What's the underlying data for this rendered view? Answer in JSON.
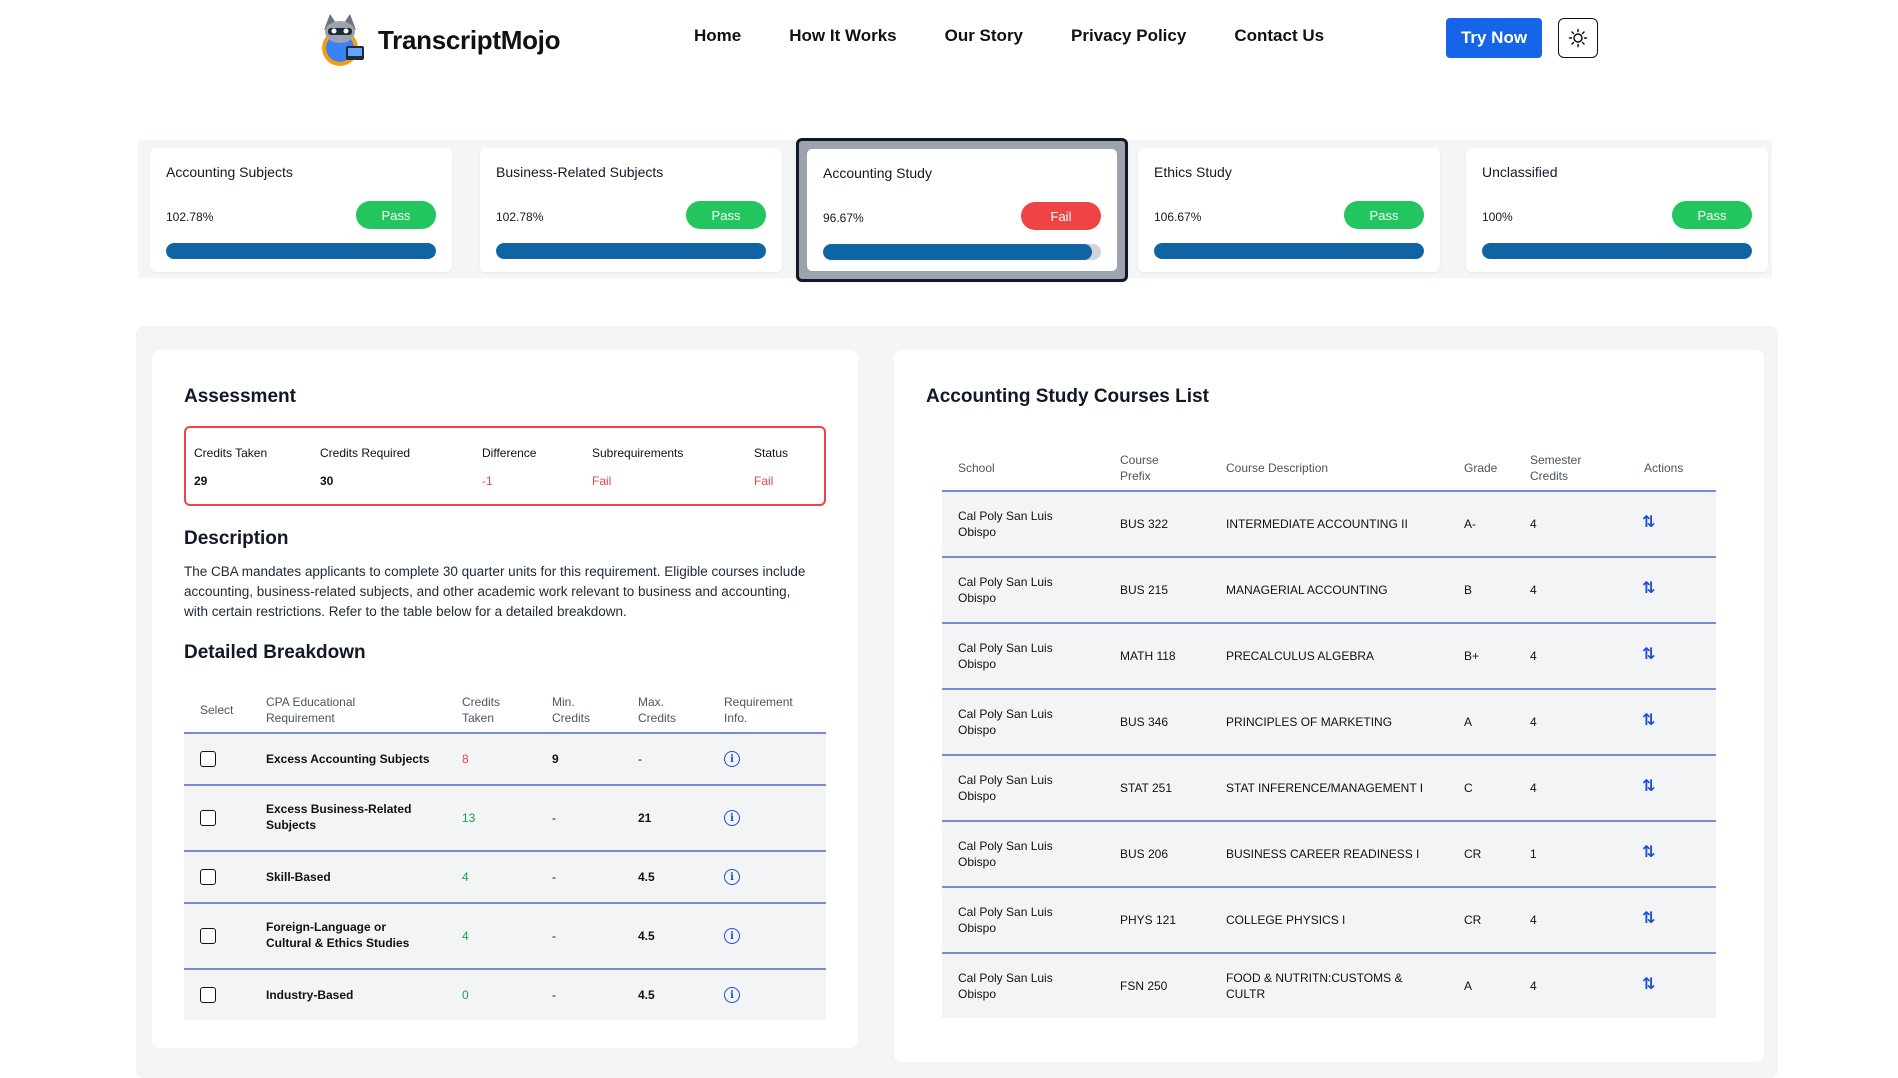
{
  "header": {
    "brand": "TranscriptMojo",
    "nav": [
      "Home",
      "How It Works",
      "Our Story",
      "Privacy Policy",
      "Contact Us"
    ],
    "try_now": "Try Now",
    "theme_icon": "sun-icon"
  },
  "categories": [
    {
      "title": "Accounting Subjects",
      "percent": "102.78%",
      "status": "Pass",
      "progress": 1.0
    },
    {
      "title": "Business-Related Subjects",
      "percent": "102.78%",
      "status": "Pass",
      "progress": 1.0
    },
    {
      "title": "Accounting Study",
      "percent": "96.67%",
      "status": "Fail",
      "progress": 0.9667
    },
    {
      "title": "Ethics Study",
      "percent": "106.67%",
      "status": "Pass",
      "progress": 1.0
    },
    {
      "title": "Unclassified",
      "percent": "100%",
      "status": "Pass",
      "progress": 1.0
    }
  ],
  "assessment": {
    "heading": "Assessment",
    "columns": [
      "Credits Taken",
      "Credits Required",
      "Difference",
      "Subrequirements",
      "Status"
    ],
    "values": [
      "29",
      "30",
      "-1",
      "Fail",
      "Fail"
    ]
  },
  "description": {
    "heading": "Description",
    "text": "The CBA mandates applicants to complete 30 quarter units for this requirement. Eligible courses include accounting, business-related subjects, and other academic work relevant to business and accounting, with certain restrictions. Refer to the table below for a detailed breakdown."
  },
  "breakdown": {
    "heading": "Detailed Breakdown",
    "headers": [
      "Select",
      "CPA Educational Requirement",
      "Credits Taken",
      "Min. Credits",
      "Max. Credits",
      "Requirement Info."
    ],
    "rows": [
      {
        "name": "Excess Accounting Subjects",
        "taken": "8",
        "min": "9",
        "max": "-"
      },
      {
        "name": "Excess Business-Related Subjects",
        "taken": "13",
        "min": "-",
        "max": "21"
      },
      {
        "name": "Skill-Based",
        "taken": "4",
        "min": "-",
        "max": "4.5"
      },
      {
        "name": "Foreign-Language or Cultural & Ethics Studies",
        "taken": "4",
        "min": "-",
        "max": "4.5"
      },
      {
        "name": "Industry-Based",
        "taken": "0",
        "min": "-",
        "max": "4.5"
      }
    ]
  },
  "courses": {
    "heading": "Accounting Study Courses List",
    "headers": [
      "School",
      "Course Prefix",
      "Course Description",
      "Grade",
      "Semester Credits",
      "Actions"
    ],
    "rows": [
      {
        "school": "Cal Poly San Luis Obispo",
        "prefix": "BUS 322",
        "desc": "INTERMEDIATE ACCOUNTING II",
        "grade": "A-",
        "credits": "4"
      },
      {
        "school": "Cal Poly San Luis Obispo",
        "prefix": "BUS 215",
        "desc": "MANAGERIAL ACCOUNTING",
        "grade": "B",
        "credits": "4"
      },
      {
        "school": "Cal Poly San Luis Obispo",
        "prefix": "MATH 118",
        "desc": "PRECALCULUS ALGEBRA",
        "grade": "B+",
        "credits": "4"
      },
      {
        "school": "Cal Poly San Luis Obispo",
        "prefix": "BUS 346",
        "desc": "PRINCIPLES OF MARKETING",
        "grade": "A",
        "credits": "4"
      },
      {
        "school": "Cal Poly San Luis Obispo",
        "prefix": "STAT 251",
        "desc": "STAT INFERENCE/MANAGEMENT I",
        "grade": "C",
        "credits": "4"
      },
      {
        "school": "Cal Poly San Luis Obispo",
        "prefix": "BUS 206",
        "desc": "BUSINESS CAREER READINESS I",
        "grade": "CR",
        "credits": "1"
      },
      {
        "school": "Cal Poly San Luis Obispo",
        "prefix": "PHYS 121",
        "desc": "COLLEGE PHYSICS I",
        "grade": "CR",
        "credits": "4"
      },
      {
        "school": "Cal Poly San Luis Obispo",
        "prefix": "FSN 250",
        "desc": "FOOD & NUTRITN:CUSTOMS & CULTR",
        "grade": "A",
        "credits": "4"
      }
    ]
  },
  "colors": {
    "pass": "#22c55e",
    "fail": "#ef4444",
    "progress": "#0f64a4",
    "accent": "#1664e8"
  }
}
